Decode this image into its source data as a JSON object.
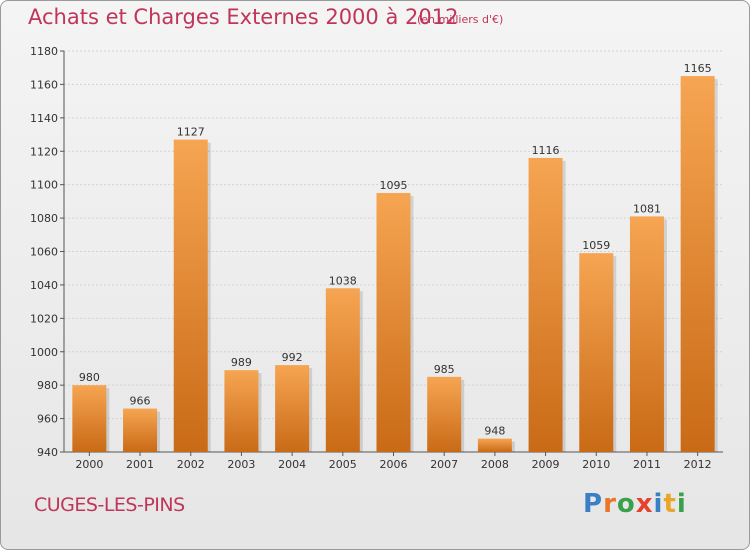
{
  "header": {
    "title": "Achats et Charges Externes 2000 à 2012",
    "subtitle": "(en milliers d'€)"
  },
  "footer": {
    "city": "CUGES-LES-PINS",
    "brand_letters": [
      "P",
      "r",
      "o",
      "x",
      "i",
      "t",
      "i"
    ],
    "brand_colors": [
      "#3a7fc4",
      "#e8762b",
      "#3aa14a",
      "#e8402f",
      "#3a7fc4",
      "#e8a72b",
      "#3aa14a"
    ]
  },
  "colors": {
    "bar_top": "#f6a552",
    "bar_bottom": "#c96a16",
    "title": "#c0355a"
  },
  "chart_data": {
    "type": "bar",
    "categories": [
      "2000",
      "2001",
      "2002",
      "2003",
      "2004",
      "2005",
      "2006",
      "2007",
      "2008",
      "2009",
      "2010",
      "2011",
      "2012"
    ],
    "values": [
      980,
      966,
      1127,
      989,
      992,
      1038,
      1095,
      985,
      948,
      1116,
      1059,
      1081,
      1165
    ],
    "title": "Achats et Charges Externes 2000 à 2012",
    "ylim": [
      940,
      1180
    ],
    "yticks": [
      940,
      960,
      980,
      1000,
      1020,
      1040,
      1060,
      1080,
      1100,
      1120,
      1140,
      1160,
      1180
    ],
    "grid": true,
    "data_labels": true
  }
}
